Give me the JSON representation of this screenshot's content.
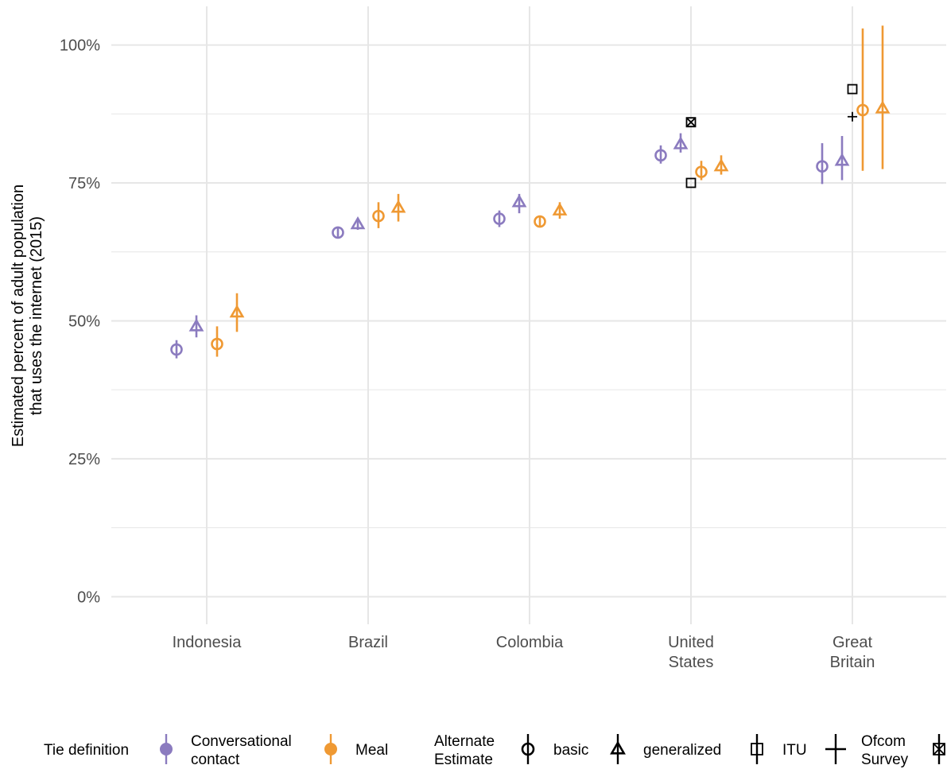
{
  "chart_data": {
    "type": "scatter",
    "ylabel": [
      "Estimated percent of adult population",
      "that uses the internet (2015)"
    ],
    "ylim": [
      -0.05,
      1.07
    ],
    "y_ticks": [
      0,
      0.25,
      0.5,
      0.75,
      1.0
    ],
    "y_tick_labels": [
      "0%",
      "25%",
      "50%",
      "75%",
      "100%"
    ],
    "categories": [
      {
        "key": "indonesia",
        "label": [
          "Indonesia"
        ]
      },
      {
        "key": "brazil",
        "label": [
          "Brazil"
        ]
      },
      {
        "key": "colombia",
        "label": [
          "Colombia"
        ]
      },
      {
        "key": "united_states",
        "label": [
          "United",
          "States"
        ]
      },
      {
        "key": "great_britain",
        "label": [
          "Great",
          "Britain"
        ]
      }
    ],
    "colors": {
      "conversational": "#8b7bbf",
      "meal": "#ef9933",
      "black": "#000000",
      "grid": "#e6e6e6"
    },
    "series": [
      {
        "tie": "conversational",
        "estimate": "basic",
        "values": [
          {
            "category": "indonesia",
            "y": 0.448,
            "lo": 0.432,
            "hi": 0.465
          },
          {
            "category": "brazil",
            "y": 0.66,
            "lo": 0.652,
            "hi": 0.668
          },
          {
            "category": "colombia",
            "y": 0.685,
            "lo": 0.67,
            "hi": 0.7
          },
          {
            "category": "united_states",
            "y": 0.8,
            "lo": 0.785,
            "hi": 0.818
          },
          {
            "category": "great_britain",
            "y": 0.78,
            "lo": 0.748,
            "hi": 0.822
          }
        ]
      },
      {
        "tie": "conversational",
        "estimate": "generalized",
        "values": [
          {
            "category": "indonesia",
            "y": 0.49,
            "lo": 0.47,
            "hi": 0.51
          },
          {
            "category": "brazil",
            "y": 0.675,
            "lo": 0.665,
            "hi": 0.685
          },
          {
            "category": "colombia",
            "y": 0.715,
            "lo": 0.695,
            "hi": 0.73
          },
          {
            "category": "united_states",
            "y": 0.82,
            "lo": 0.805,
            "hi": 0.84
          },
          {
            "category": "great_britain",
            "y": 0.79,
            "lo": 0.755,
            "hi": 0.835
          }
        ]
      },
      {
        "tie": "meal",
        "estimate": "basic",
        "values": [
          {
            "category": "indonesia",
            "y": 0.458,
            "lo": 0.435,
            "hi": 0.49
          },
          {
            "category": "brazil",
            "y": 0.69,
            "lo": 0.668,
            "hi": 0.715
          },
          {
            "category": "colombia",
            "y": 0.68,
            "lo": 0.672,
            "hi": 0.69
          },
          {
            "category": "united_states",
            "y": 0.77,
            "lo": 0.755,
            "hi": 0.79
          },
          {
            "category": "great_britain",
            "y": 0.882,
            "lo": 0.772,
            "hi": 1.03
          }
        ]
      },
      {
        "tie": "meal",
        "estimate": "generalized",
        "values": [
          {
            "category": "indonesia",
            "y": 0.515,
            "lo": 0.48,
            "hi": 0.55
          },
          {
            "category": "brazil",
            "y": 0.705,
            "lo": 0.68,
            "hi": 0.73
          },
          {
            "category": "colombia",
            "y": 0.7,
            "lo": 0.685,
            "hi": 0.715
          },
          {
            "category": "united_states",
            "y": 0.78,
            "lo": 0.765,
            "hi": 0.8
          },
          {
            "category": "great_britain",
            "y": 0.885,
            "lo": 0.775,
            "hi": 1.035
          }
        ]
      }
    ],
    "alternate_estimates": [
      {
        "category": "united_states",
        "estimate": "ITU",
        "y": 0.75
      },
      {
        "category": "united_states",
        "estimate": "other",
        "y": 0.86
      },
      {
        "category": "great_britain",
        "estimate": "ITU",
        "y": 0.92
      },
      {
        "category": "great_britain",
        "estimate": "Ofcom Survey",
        "y": 0.87
      }
    ],
    "legend": {
      "placement": "bottom",
      "tie_title": "Tie definition",
      "tie_items": [
        {
          "key": "conversational",
          "label": [
            "Conversational",
            "contact"
          ]
        },
        {
          "key": "meal",
          "label": [
            "Meal"
          ]
        }
      ],
      "estimate_title": [
        "Alternate",
        "Estimate"
      ],
      "estimate_items": [
        {
          "key": "basic",
          "label": [
            "basic"
          ]
        },
        {
          "key": "generalized",
          "label": [
            "generalized"
          ]
        },
        {
          "key": "ITU",
          "label": [
            "ITU"
          ]
        },
        {
          "key": "Ofcom Survey",
          "label": [
            "Ofcom",
            "Survey"
          ]
        },
        {
          "key": "other",
          "label": []
        }
      ]
    }
  }
}
